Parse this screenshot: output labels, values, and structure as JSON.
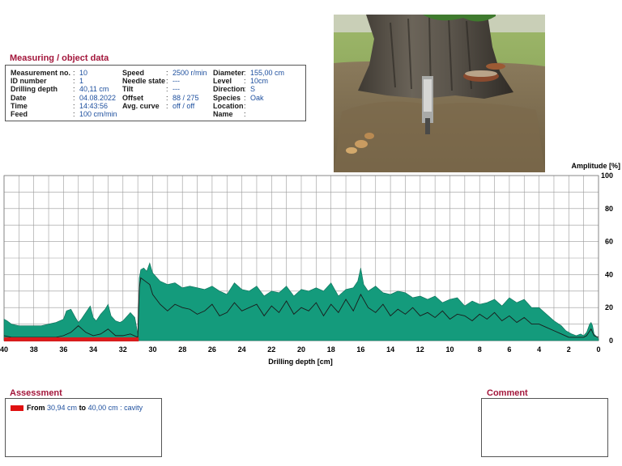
{
  "measuring": {
    "title": "Measuring / object data",
    "col1": [
      {
        "label": "Measurement no.",
        "value": "10"
      },
      {
        "label": "ID number",
        "value": "1"
      },
      {
        "label": "Drilling depth",
        "value": "40,11 cm"
      },
      {
        "label": "Date",
        "value": "04.08.2022"
      },
      {
        "label": "Time",
        "value": "14:43:56"
      },
      {
        "label": "Feed",
        "value": "100 cm/min"
      }
    ],
    "col2": [
      {
        "label": "Speed",
        "value": "2500 r/min"
      },
      {
        "label": "Needle state",
        "value": "---"
      },
      {
        "label": "Tilt",
        "value": "---"
      },
      {
        "label": "Offset",
        "value": "88 / 275"
      },
      {
        "label": "Avg. curve",
        "value": "off / off"
      }
    ],
    "col3": [
      {
        "label": "Diameter",
        "value": "155,00 cm"
      },
      {
        "label": "Level",
        "value": "10cm"
      },
      {
        "label": "Direction",
        "value": "S"
      },
      {
        "label": "Species",
        "value": "Oak"
      },
      {
        "label": "Location",
        "value": ""
      },
      {
        "label": "Name",
        "value": ""
      }
    ]
  },
  "assessment": {
    "title": "Assessment",
    "from_label": "From",
    "from_value": "30,94 cm",
    "to_label": "to",
    "to_value": "40,00 cm",
    "result": ": cavity",
    "swatch_color": "#e01010"
  },
  "comment": {
    "title": "Comment"
  },
  "chart_data": {
    "type": "area",
    "ylabel": "Amplitude [%]",
    "xlabel": "Drilling depth [cm]",
    "xlim": [
      40,
      0
    ],
    "ylim": [
      0,
      100
    ],
    "x_ticks": [
      "40",
      "38",
      "36",
      "34",
      "32",
      "30",
      "28",
      "26",
      "24",
      "22",
      "20",
      "18",
      "16",
      "14",
      "12",
      "10",
      "8",
      "6",
      "4",
      "2",
      "0"
    ],
    "y_ticks": [
      "0",
      "20",
      "40",
      "60",
      "80",
      "100"
    ],
    "grid": true,
    "colors": {
      "fill": "#149b7c",
      "line": "#1a1a1a",
      "grid": "#9a9a9a",
      "marker": "#d81c1c"
    },
    "cavity_range": [
      30.94,
      40.0
    ],
    "series": [
      {
        "x": [
          40,
          39.8,
          39.5,
          39,
          38.5,
          38,
          37.5,
          37,
          36.5,
          36,
          35.8,
          35.5,
          35.2,
          35,
          34.8,
          34.5,
          34.2,
          34,
          33.8,
          33.5,
          33.2,
          33,
          32.8,
          32.5,
          32.2,
          32,
          31.8,
          31.5,
          31.2,
          31,
          30.9,
          30.8,
          30.6,
          30.4,
          30.2,
          30,
          29.5,
          29,
          28.5,
          28,
          27.5,
          27,
          26.5,
          26,
          25.5,
          25,
          24.5,
          24,
          23.5,
          23,
          22.5,
          22,
          21.5,
          21,
          20.5,
          20,
          19.5,
          19,
          18.5,
          18,
          17.5,
          17,
          16.5,
          16.2,
          16,
          15.8,
          15.5,
          15,
          14.5,
          14,
          13.5,
          13,
          12.5,
          12,
          11.5,
          11,
          10.5,
          10,
          9.5,
          9,
          8.5,
          8,
          7.5,
          7,
          6.5,
          6,
          5.5,
          5,
          4.5,
          4,
          3.5,
          3,
          2.5,
          2.2,
          2,
          1.8,
          1.5,
          1.2,
          1,
          0.8,
          0.6,
          0.5,
          0.4,
          0.3,
          0.2,
          0.1,
          0
        ],
        "values": [
          13,
          12,
          10,
          9,
          9,
          9,
          9,
          10,
          11,
          13,
          18,
          19,
          14,
          11,
          13,
          17,
          21,
          14,
          12,
          16,
          19,
          22,
          15,
          12,
          11,
          12,
          14,
          17,
          14,
          4,
          38,
          43,
          44,
          42,
          47,
          41,
          36,
          34,
          35,
          32,
          33,
          32,
          31,
          33,
          30,
          28,
          35,
          31,
          30,
          33,
          27,
          30,
          29,
          33,
          27,
          31,
          30,
          32,
          30,
          35,
          27,
          31,
          32,
          36,
          44,
          34,
          30,
          33,
          29,
          28,
          30,
          29,
          26,
          27,
          25,
          27,
          23,
          25,
          26,
          21,
          24,
          22,
          23,
          25,
          21,
          26,
          23,
          25,
          20,
          20,
          16,
          12,
          9,
          6,
          5,
          4,
          3,
          4,
          3,
          5,
          10,
          11,
          9,
          4,
          3,
          2,
          1
        ]
      },
      {
        "x": [
          40,
          39.5,
          39,
          38.5,
          38,
          37.5,
          37,
          36.5,
          36,
          35.5,
          35,
          34.5,
          34,
          33.5,
          33,
          32.5,
          32,
          31.5,
          31,
          30.9,
          30.8,
          30.5,
          30.2,
          30,
          29.5,
          29,
          28.5,
          28,
          27.5,
          27,
          26.5,
          26,
          25.5,
          25,
          24.5,
          24,
          23.5,
          23,
          22.5,
          22,
          21.5,
          21,
          20.5,
          20,
          19.5,
          19,
          18.5,
          18,
          17.5,
          17,
          16.5,
          16,
          15.5,
          15,
          14.5,
          14,
          13.5,
          13,
          12.5,
          12,
          11.5,
          11,
          10.5,
          10,
          9.5,
          9,
          8.5,
          8,
          7.5,
          7,
          6.5,
          6,
          5.5,
          5,
          4.5,
          4,
          3.5,
          3,
          2.5,
          2,
          1.5,
          1,
          0.8,
          0.5,
          0.3,
          0
        ],
        "values": [
          3,
          2,
          2,
          2,
          2,
          2,
          2,
          2,
          3,
          5,
          9,
          5,
          3,
          4,
          7,
          3,
          3,
          4,
          2,
          32,
          38,
          36,
          34,
          28,
          22,
          18,
          22,
          20,
          19,
          16,
          18,
          22,
          15,
          17,
          23,
          18,
          20,
          22,
          15,
          21,
          17,
          24,
          16,
          20,
          18,
          23,
          15,
          22,
          17,
          25,
          18,
          28,
          20,
          17,
          22,
          15,
          19,
          16,
          20,
          15,
          17,
          14,
          18,
          13,
          16,
          15,
          12,
          16,
          13,
          17,
          12,
          15,
          11,
          14,
          10,
          10,
          8,
          6,
          4,
          2,
          2,
          2,
          3,
          7,
          3,
          2
        ]
      }
    ]
  }
}
